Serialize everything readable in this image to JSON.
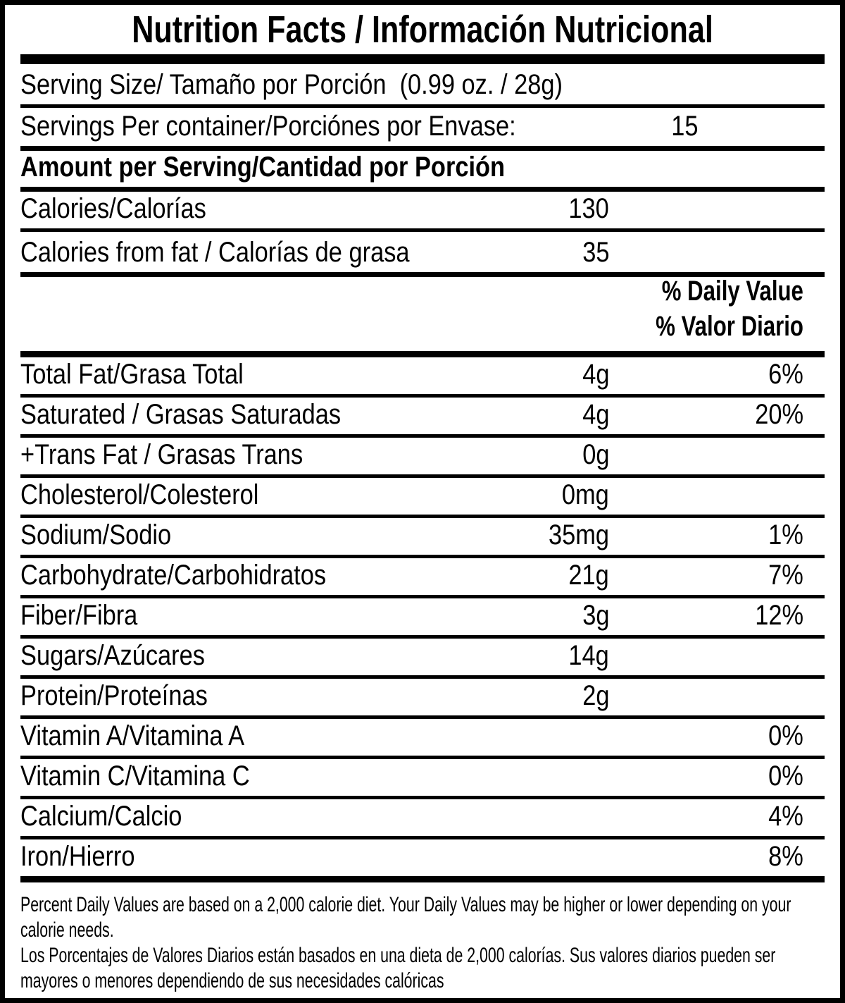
{
  "title": "Nutrition Facts / Información Nutricional",
  "serving_size_line": "Serving Size/ Tamaño por Porción  (0.99 oz. / 28g)",
  "servings_per_container": {
    "label": "Servings Per container/Porciónes por Envase:",
    "value": "15"
  },
  "amount_per_serving_header": "Amount per Serving/Cantidad por Porción",
  "calorie_rows": [
    {
      "label": "Calories/Calorías",
      "amount": "130"
    },
    {
      "label": "Calories from fat / Calorías de grasa",
      "amount": "35"
    }
  ],
  "daily_value_header": {
    "line1": "% Daily Value",
    "line2": "% Valor Diario"
  },
  "nutrient_rows": [
    {
      "label": "Total Fat/Grasa Total",
      "amount": "4g",
      "dv": "6%"
    },
    {
      "label": "Saturated / Grasas Saturadas",
      "amount": "4g",
      "dv": "20%"
    },
    {
      "label": "+Trans Fat / Grasas Trans",
      "amount": "0g",
      "dv": ""
    },
    {
      "label": "Cholesterol/Colesterol",
      "amount": "0mg",
      "dv": ""
    },
    {
      "label": "Sodium/Sodio",
      "amount": "35mg",
      "dv": "1%"
    },
    {
      "label": "Carbohydrate/Carbohidratos",
      "amount": "21g",
      "dv": "7%"
    },
    {
      "label": "Fiber/Fibra",
      "amount": "3g",
      "dv": "12%"
    },
    {
      "label": "Sugars/Azúcares",
      "amount": "14g",
      "dv": ""
    },
    {
      "label": "Protein/Proteínas",
      "amount": "2g",
      "dv": ""
    },
    {
      "label": "Vitamin A/Vitamina A",
      "amount": "",
      "dv": "0%"
    },
    {
      "label": "Vitamin C/Vitamina C",
      "amount": "",
      "dv": "0%"
    },
    {
      "label": "Calcium/Calcio",
      "amount": "",
      "dv": "4%"
    },
    {
      "label": "Iron/Hierro",
      "amount": "",
      "dv": "8%"
    }
  ],
  "footnote_lines": [
    "Percent Daily Values are based on a 2,000 calorie diet. Your Daily Values may be higher or lower depending on your",
    "calorie needs.",
    "Los Porcentajes de Valores Diarios están basados en una dieta de 2,000 calorías. Sus valores diarios pueden ser",
    "mayores o menores dependiendo de sus necesidades calóricas"
  ],
  "colors": {
    "ink": "#000000",
    "paper": "#ffffff"
  }
}
